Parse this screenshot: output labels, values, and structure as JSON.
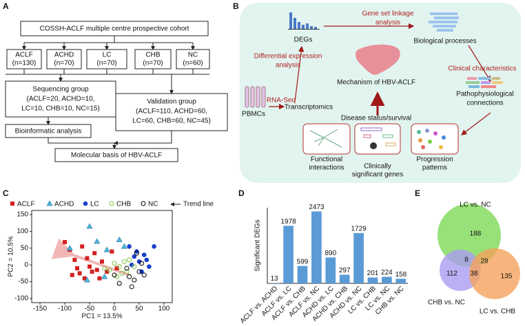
{
  "panel_labels": [
    "A",
    "B",
    "C",
    "D",
    "E"
  ],
  "flowchart": {
    "cohort": "COSSH-ACLF multiple centre prospective cohort",
    "groups": [
      {
        "name": "ACLF",
        "n": "(n=130)"
      },
      {
        "name": "ACHD",
        "n": "(n=70)"
      },
      {
        "name": "LC",
        "n": "(n=70)"
      },
      {
        "name": "CHB",
        "n": "(n=70)"
      },
      {
        "name": "NC",
        "n": "(n=60)"
      }
    ],
    "sequencing": [
      "Sequencing group",
      "(ACLF=20, ACHD=10,",
      "LC=10, CHB=10, NC=15)"
    ],
    "validation": [
      "Validation group",
      "(ACLF=110, ACHD=60,",
      "LC=60, CHB=60, NC=45)"
    ],
    "bioinformatic": "Bioinformatic analysis",
    "molecular": "Molecular basis of HBV-ACLF"
  },
  "workflow": {
    "degs": "DEGs",
    "gene_set": [
      "Gene set linkage",
      "analysis"
    ],
    "biological": "Biological processes",
    "differential": [
      "Differential expression",
      "analysis"
    ],
    "clinical": "Clinical characteristics",
    "mechanism": "Mechanism of HBV-ACLF",
    "rnaseq": "RNA-Seq",
    "pbmcs": "PBMCs",
    "transcriptomics": "Transcriptomics",
    "patho": [
      "Pathophysiological",
      "connections"
    ],
    "disease": "Disease status/survival",
    "functional": [
      "Functional",
      "interactions"
    ],
    "genes": [
      "Clinically",
      "significant genes"
    ],
    "progression": [
      "Progression",
      "patterns"
    ]
  },
  "chart_data": [
    {
      "type": "scatter",
      "x_label": "PC1 = 13.5%",
      "y_label": "PC2 = 10.5%",
      "trend_label": "Trend line",
      "xlim": [
        -150,
        100
      ],
      "xticks": [
        -150,
        -100,
        -50,
        0,
        50,
        100
      ],
      "ylim": [
        -100,
        150
      ],
      "yticks": [
        -100,
        -50,
        0,
        50,
        100,
        150
      ],
      "series": [
        {
          "name": "ACLF",
          "color": "#d42020",
          "marker": "square",
          "x": [
            -100,
            -90,
            -80,
            -75,
            -70,
            -60,
            -55,
            -50,
            -45,
            -40,
            -35,
            -30,
            -25,
            -15,
            -5,
            5,
            -65,
            -85
          ],
          "values": [
            68,
            45,
            15,
            -10,
            -25,
            -40,
            20,
            -5,
            -20,
            35,
            -15,
            -40,
            10,
            -20,
            40,
            -10,
            55,
            -30
          ]
        },
        {
          "name": "ACHD",
          "color": "#4fb3d9",
          "marker": "triangle",
          "x": [
            -50,
            -90,
            -55,
            -20,
            -15,
            10,
            20,
            -35
          ],
          "values": [
            115,
            50,
            -45,
            -35,
            45,
            75,
            55,
            70
          ]
        },
        {
          "name": "LC",
          "color": "#1a3fcc",
          "marker": "circle",
          "x": [
            30,
            45,
            50,
            55,
            60,
            70,
            80,
            40,
            35,
            65
          ],
          "values": [
            55,
            40,
            10,
            -20,
            30,
            -5,
            55,
            25,
            0,
            15
          ]
        },
        {
          "name": "CHB",
          "color": "#7dc242",
          "marker": "circle-open",
          "x": [
            -20,
            -10,
            0,
            10,
            15,
            25,
            5,
            30,
            40,
            20
          ],
          "values": [
            -10,
            -15,
            5,
            -5,
            -25,
            -20,
            -35,
            15,
            -5,
            10
          ]
        },
        {
          "name": "NC",
          "color": "#000000",
          "marker": "circle-open",
          "x": [
            0,
            10,
            30,
            40,
            50,
            55,
            45,
            25,
            60,
            35
          ],
          "values": [
            -30,
            -55,
            -35,
            -45,
            -20,
            5,
            35,
            -10,
            -30,
            -65
          ]
        }
      ]
    },
    {
      "type": "bar",
      "y_label": "Significant DEGs",
      "color": "#5b9bd5",
      "ylim": [
        0,
        2600
      ],
      "categories": [
        "ACLF vs. ACHD",
        "ACLF vs. LC",
        "ACLF vs. CHB",
        "ACLF vs. NC",
        "ACHD vs. LC",
        "ACHD vs. CHB",
        "ACHD vs. NC",
        "LC vs. CHB",
        "LC vs. NC",
        "CHB vs. NC"
      ],
      "values": [
        13,
        1978,
        599,
        2473,
        890,
        297,
        1729,
        201,
        224,
        158
      ]
    },
    {
      "type": "venn",
      "sets": [
        {
          "name": "LC vs. NC",
          "color": "#7ed957"
        },
        {
          "name": "CHB vs. NC",
          "color": "#a99cf0"
        },
        {
          "name": "LC vs. CHB",
          "color": "#f5a25d"
        }
      ],
      "regions": [
        188,
        112,
        135,
        8,
        28,
        38
      ]
    }
  ]
}
